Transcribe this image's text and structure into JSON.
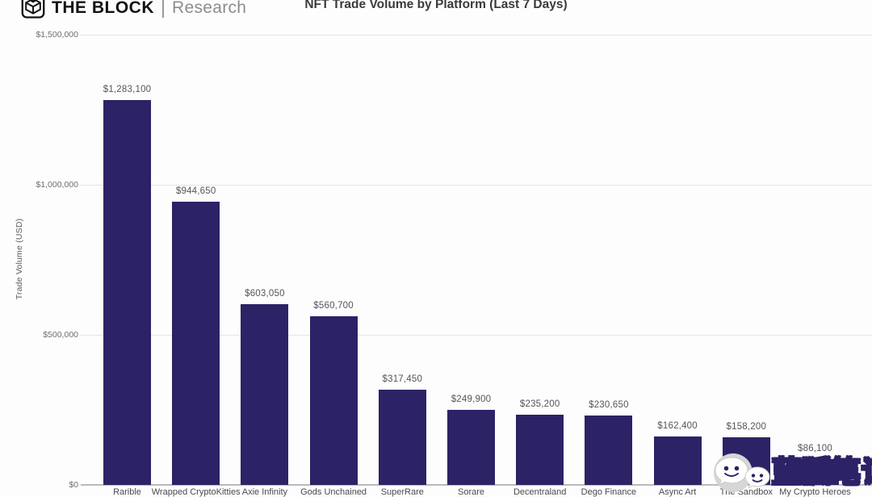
{
  "header": {
    "brand": {
      "name": "THE BLOCK",
      "sub": "Research",
      "logo_icon": "block-cube-icon"
    },
    "title": "NFT Trade Volume by Platform (Last 7 Days)"
  },
  "chart_data": {
    "type": "bar",
    "title": "NFT Trade Volume by Platform (Last 7 Days)",
    "xlabel": "",
    "ylabel": "Trade Volume (USD)",
    "ylim": [
      0,
      1500000
    ],
    "grid": true,
    "legend_position": "none",
    "bar_color": "#2b2366",
    "yticks": [
      {
        "label": "$0",
        "value": 0
      },
      {
        "label": "$500,000",
        "value": 500000
      },
      {
        "label": "$1,000,000",
        "value": 1000000
      },
      {
        "label": "$1,500,000",
        "value": 1500000
      }
    ],
    "categories": [
      "Rarible",
      "Wrapped CryptoKitties",
      "Axie Infinity",
      "Gods Unchained",
      "SuperRare",
      "Sorare",
      "Decentraland",
      "Dego Finance",
      "Async Art",
      "The Sandbox",
      "My Crypto Heroes"
    ],
    "values": [
      1283100,
      944650,
      603050,
      560700,
      317450,
      249900,
      235200,
      230650,
      162400,
      158200,
      86100
    ],
    "value_labels": [
      "$1,283,100",
      "$944,650",
      "$603,050",
      "$560,700",
      "$317,450",
      "$249,900",
      "$235,200",
      "$230,650",
      "$162,400",
      "$158,200",
      "$86,100"
    ]
  },
  "watermark": {
    "text": "蓝狐笔记",
    "icon": "wechat-icon"
  },
  "colors": {
    "bar": "#2b2366",
    "grid": "#e5e5e5",
    "axis": "#b9b9be",
    "tick_text": "#6f6f73",
    "value_text": "#55555c",
    "brand_text": "#121212",
    "brand_sub_text": "#8d8d8d",
    "watermark_navy": "#2b2366"
  }
}
